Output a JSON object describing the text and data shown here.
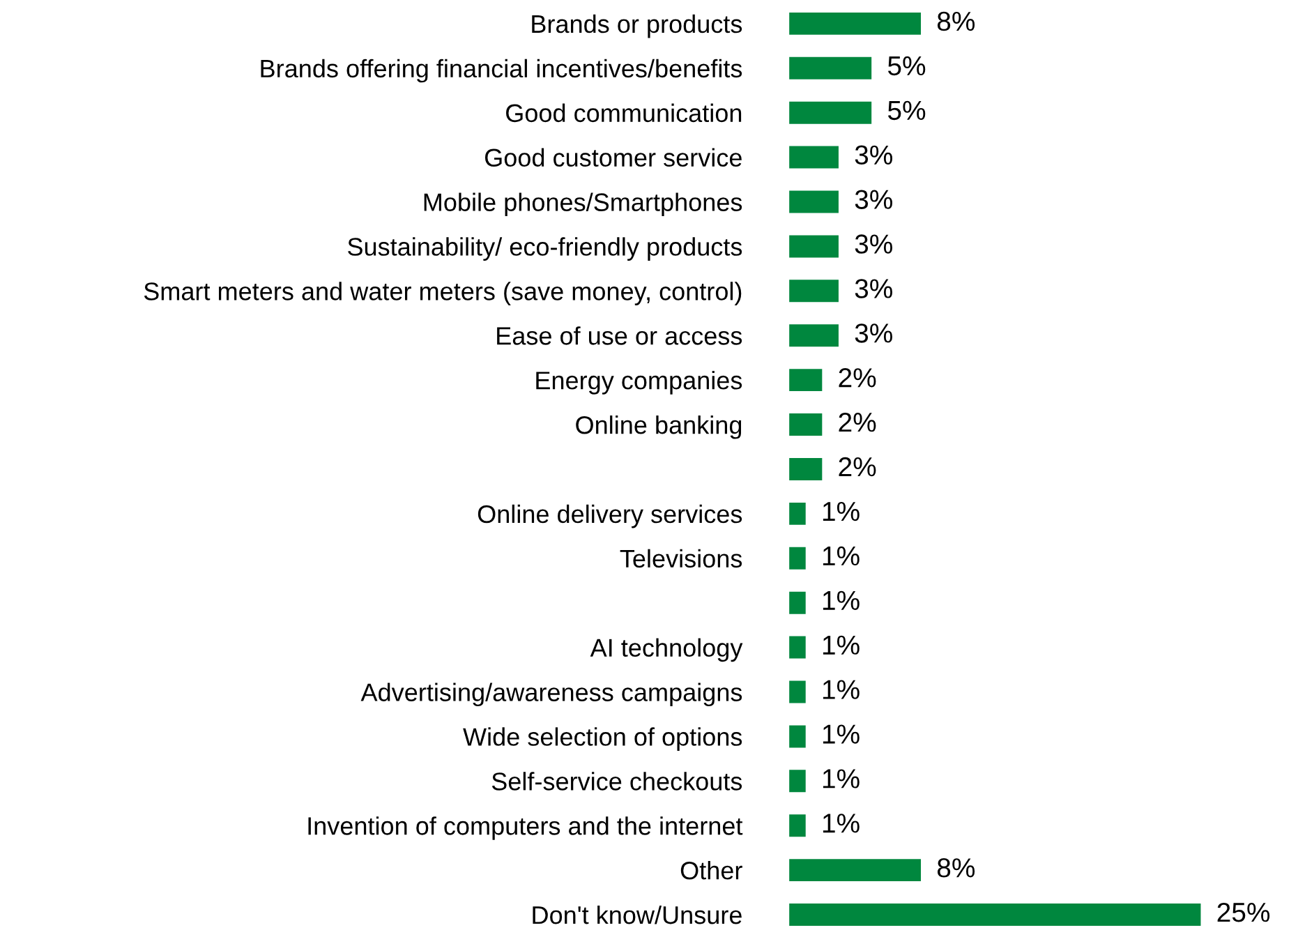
{
  "chart_data": {
    "type": "bar",
    "orientation": "horizontal",
    "categories": [
      "Brands or products",
      "Brands offering financial incentives/benefits",
      "Good communication",
      "Good customer service",
      "Mobile phones/Smartphones",
      "Sustainability/ eco-friendly products",
      "Smart meters and water meters (save money, control)",
      "Ease of use or access",
      "Energy companies",
      "Online banking",
      null,
      "Online delivery services",
      "Televisions",
      null,
      "AI technology",
      "Advertising/awareness campaigns",
      "Wide selection of options",
      "Self-service checkouts",
      "Invention of computers and the internet",
      "Other",
      "Don't know/Unsure"
    ],
    "values": [
      8,
      5,
      5,
      3,
      3,
      3,
      3,
      3,
      2,
      2,
      2,
      1,
      1,
      1,
      1,
      1,
      1,
      1,
      1,
      8,
      25
    ],
    "value_labels": [
      "8%",
      "5%",
      "5%",
      "3%",
      "3%",
      "3%",
      "3%",
      "3%",
      "2%",
      "2%",
      "2%",
      "1%",
      "1%",
      "1%",
      "1%",
      "1%",
      "1%",
      "1%",
      "1%",
      "8%",
      "25%"
    ],
    "color": "#00873e"
  }
}
